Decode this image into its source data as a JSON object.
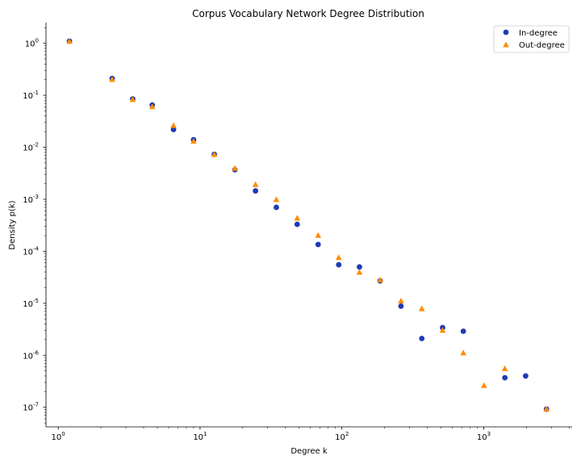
{
  "chart_data": {
    "type": "scatter",
    "title": "Corpus Vocabulary Network Degree Distribution",
    "xlabel": "Degree k",
    "ylabel": "Density p(k)",
    "xscale": "log",
    "yscale": "log",
    "xlim": [
      0.82,
      4200
    ],
    "ylim": [
      4.2e-08,
      2.5
    ],
    "grid": false,
    "legend_position": "top-right",
    "x_ticks": [
      {
        "value": 1,
        "base": "10",
        "exp": "0"
      },
      {
        "value": 10,
        "base": "10",
        "exp": "1"
      },
      {
        "value": 100,
        "base": "10",
        "exp": "2"
      },
      {
        "value": 1000,
        "base": "10",
        "exp": "3"
      }
    ],
    "y_ticks": [
      {
        "value": 1,
        "base": "10",
        "exp": "0"
      },
      {
        "value": 0.1,
        "base": "10",
        "exp": "-1"
      },
      {
        "value": 0.01,
        "base": "10",
        "exp": "-2"
      },
      {
        "value": 0.001,
        "base": "10",
        "exp": "-3"
      },
      {
        "value": 0.0001,
        "base": "10",
        "exp": "-4"
      },
      {
        "value": 1e-05,
        "base": "10",
        "exp": "-5"
      },
      {
        "value": 1e-06,
        "base": "10",
        "exp": "-6"
      },
      {
        "value": 1e-07,
        "base": "10",
        "exp": "-7"
      }
    ],
    "series": [
      {
        "name": "In-degree",
        "marker": "circle",
        "color": "#1f3bb3",
        "points": [
          [
            1.2,
            1.1
          ],
          [
            2.4,
            0.21
          ],
          [
            3.35,
            0.085
          ],
          [
            4.6,
            0.065
          ],
          [
            6.5,
            0.022
          ],
          [
            9.0,
            0.014
          ],
          [
            12.6,
            0.0073
          ],
          [
            17.6,
            0.0037
          ],
          [
            24.6,
            0.00145
          ],
          [
            34.5,
            0.0007
          ],
          [
            48.4,
            0.00033
          ],
          [
            68.0,
            0.000135
          ],
          [
            95.0,
            5.5e-05
          ],
          [
            133.0,
            5e-05
          ],
          [
            186.0,
            2.7e-05
          ],
          [
            261.0,
            8.8e-06
          ],
          [
            366.0,
            2.1e-06
          ],
          [
            513.0,
            3.4e-06
          ],
          [
            718.0,
            2.9e-06
          ],
          [
            1410.0,
            3.7e-07
          ],
          [
            1975.0,
            4e-07
          ],
          [
            2770.0,
            9.2e-08
          ]
        ]
      },
      {
        "name": "Out-degree",
        "marker": "triangle",
        "color": "#ff8c00",
        "points": [
          [
            1.2,
            1.08
          ],
          [
            2.4,
            0.2
          ],
          [
            3.35,
            0.082
          ],
          [
            4.6,
            0.06
          ],
          [
            6.5,
            0.026
          ],
          [
            9.0,
            0.013
          ],
          [
            12.6,
            0.0072
          ],
          [
            17.6,
            0.0039
          ],
          [
            24.6,
            0.0019
          ],
          [
            34.5,
            0.00098
          ],
          [
            48.4,
            0.00043
          ],
          [
            68.0,
            0.0002
          ],
          [
            95.0,
            7.5e-05
          ],
          [
            133.0,
            3.9e-05
          ],
          [
            186.0,
            2.8e-05
          ],
          [
            261.0,
            1.1e-05
          ],
          [
            366.0,
            7.8e-06
          ],
          [
            513.0,
            3e-06
          ],
          [
            718.0,
            1.1e-06
          ],
          [
            1005.0,
            2.6e-07
          ],
          [
            1410.0,
            5.5e-07
          ],
          [
            2770.0,
            9.2e-08
          ]
        ]
      }
    ]
  }
}
